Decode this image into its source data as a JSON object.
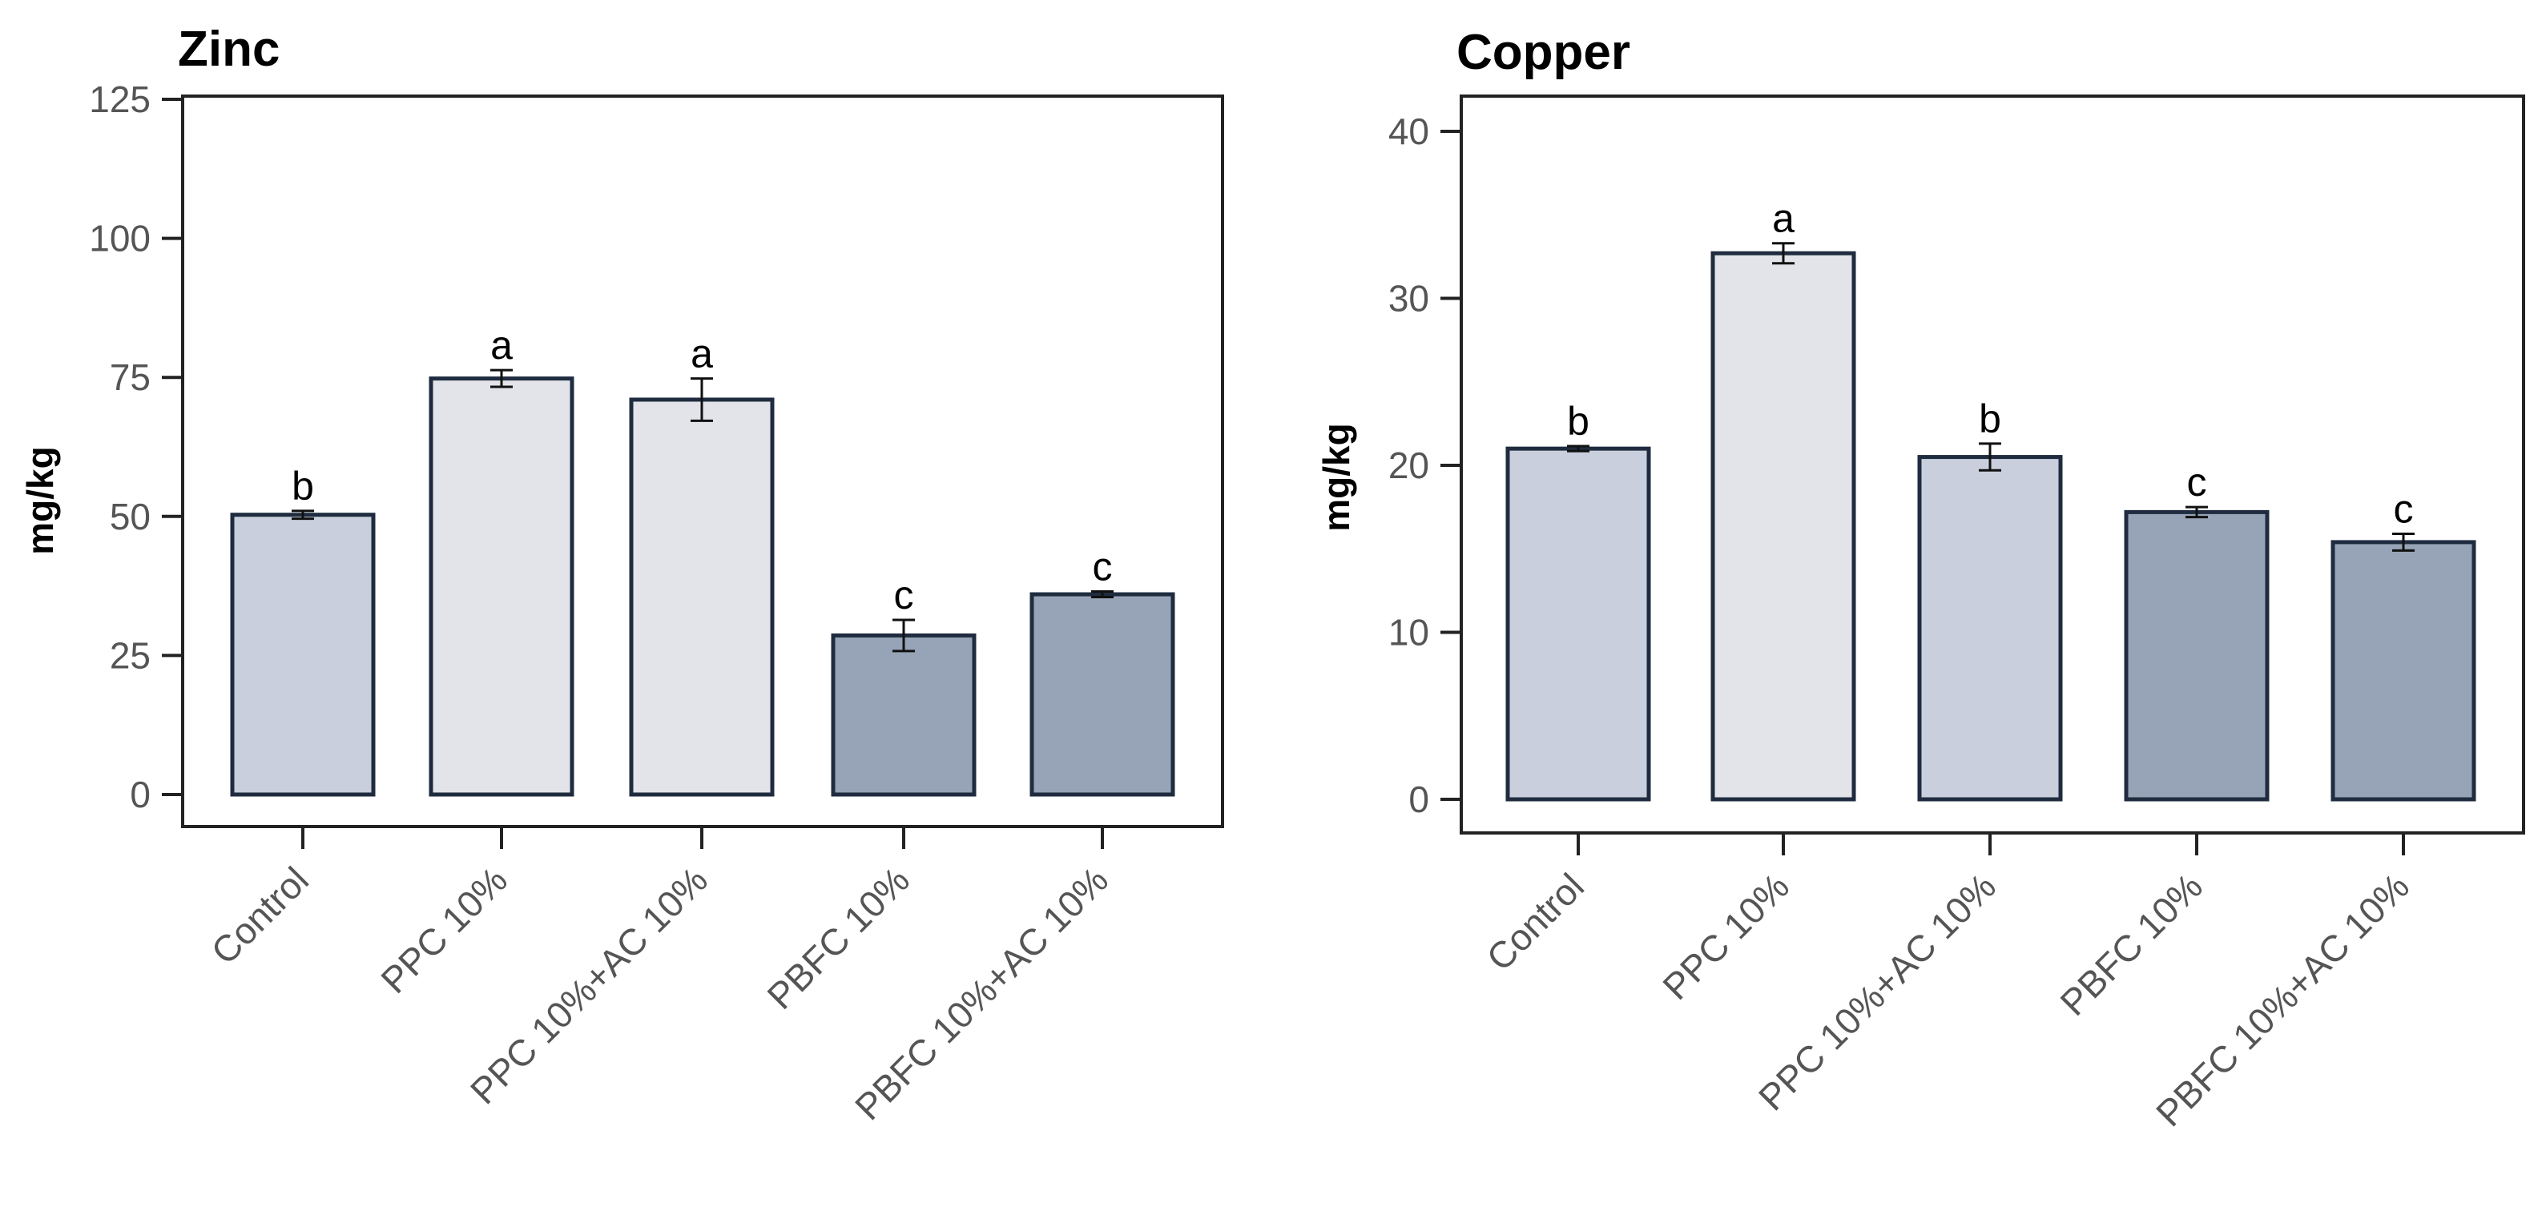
{
  "chart_data": [
    {
      "type": "bar",
      "title": "Zinc",
      "ylabel": "mg/kg",
      "xlabel": "",
      "ylim": [
        0,
        125
      ],
      "yticks": [
        0,
        25,
        50,
        75,
        100,
        125
      ],
      "grid": false,
      "categories": [
        "Control",
        "PPC 10%",
        "PPC 10%+AC 10%",
        "PBFC 10%",
        "PBFC 10%+AC 10%"
      ],
      "values": [
        50.3,
        74.8,
        71.0,
        28.6,
        36.0
      ],
      "errors": [
        0.7,
        1.5,
        3.8,
        2.8,
        0.5
      ],
      "letters": [
        "b",
        "a",
        "a",
        "c",
        "c"
      ],
      "bar_colors": [
        "#c9cfdc",
        "#e2e4ea",
        "#e2e4ea",
        "#97a3b6",
        "#97a3b6"
      ],
      "edge_color": "#1f2c3f"
    },
    {
      "type": "bar",
      "title": "Copper",
      "ylabel": "mg/kg",
      "xlabel": "",
      "ylim": [
        0,
        40
      ],
      "yticks": [
        0,
        10,
        20,
        30,
        40
      ],
      "grid": false,
      "categories": [
        "Control",
        "PPC 10%",
        "PPC 10%+AC 10%",
        "PBFC 10%",
        "PBFC 10%+AC 10%"
      ],
      "values": [
        21.0,
        32.7,
        20.5,
        17.2,
        15.4
      ],
      "errors": [
        0.15,
        0.6,
        0.8,
        0.3,
        0.5
      ],
      "letters": [
        "b",
        "a",
        "b",
        "c",
        "c"
      ],
      "bar_colors": [
        "#c9cfdc",
        "#e2e4ea",
        "#c9cfdc",
        "#97a3b6",
        "#97a3b6"
      ],
      "edge_color": "#1f2c3f"
    }
  ]
}
